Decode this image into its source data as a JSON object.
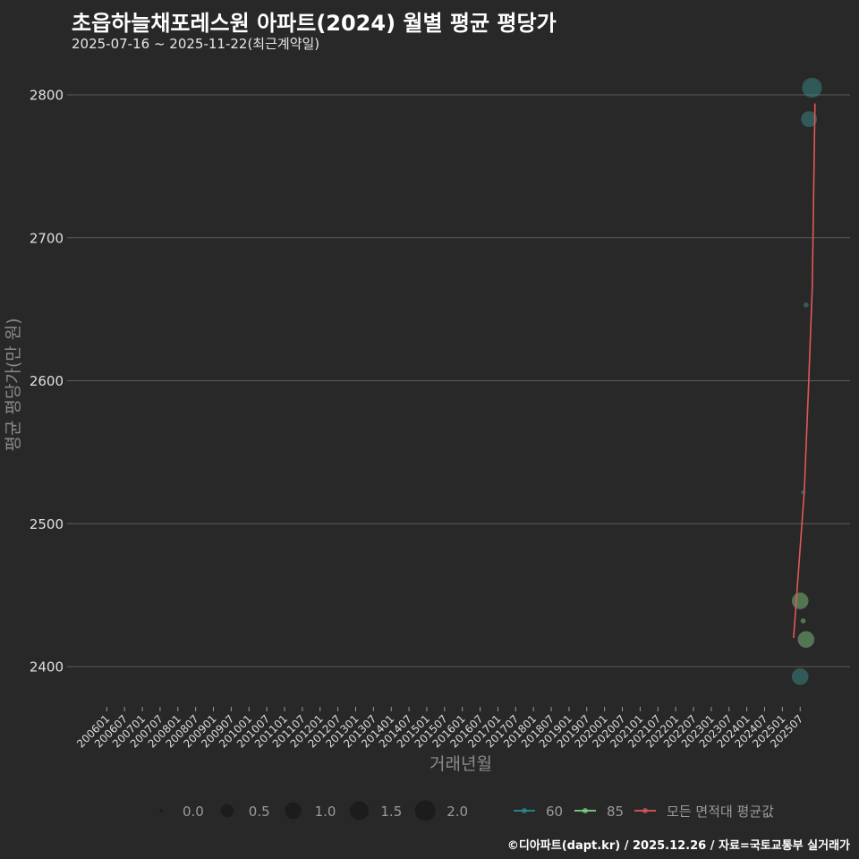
{
  "header": {
    "title": "초읍하늘채포레스원 아파트(2024) 월별 평균 평당가",
    "subtitle": "2025-07-16 ~ 2025-11-22(최근계약일)"
  },
  "footer": {
    "caption": "©디아파트(dapt.kr) / 2025.12.26 / 자료=국토교통부 실거래가"
  },
  "colors": {
    "background": "#282828",
    "grid": "#5c5c5c",
    "series_60": "#2b8c96",
    "series_60_point": "#3a8a85",
    "series_85": "#7fd97a",
    "series_85_point": "#7ec27a",
    "trend": "#e0575a",
    "size_legend": "#1c1c1c"
  },
  "chart_data": {
    "type": "scatter",
    "title": "초읍하늘채포레스원 아파트(2024) 월별 평균 평당가",
    "subtitle": "2025-07-16 ~ 2025-11-22(최근계약일)",
    "xlabel": "거래년월",
    "ylabel": "평균 평당가(만 원)",
    "ylim": [
      2372,
      2812
    ],
    "yticks": [
      2400,
      2500,
      2600,
      2700,
      2800
    ],
    "grid": true,
    "x_start": "200601",
    "xticks": [
      "200601",
      "200607",
      "200701",
      "200707",
      "200801",
      "200807",
      "200901",
      "200907",
      "201001",
      "201007",
      "201101",
      "201107",
      "201201",
      "201207",
      "201301",
      "201307",
      "201401",
      "201407",
      "201501",
      "201507",
      "201601",
      "201607",
      "201701",
      "201707",
      "201801",
      "201807",
      "201901",
      "201907",
      "202001",
      "202007",
      "202101",
      "202107",
      "202201",
      "202207",
      "202301",
      "202307",
      "202401",
      "202407",
      "202501",
      "202507"
    ],
    "series": [
      {
        "name": "60",
        "color_key": "series_60",
        "points": [
          {
            "x": "202507",
            "y": 2393,
            "size": 1.0
          },
          {
            "x": "202508",
            "y": 2522,
            "size": 0.05
          },
          {
            "x": "202509",
            "y": 2653,
            "size": 0.1
          },
          {
            "x": "202510",
            "y": 2783,
            "size": 0.9
          },
          {
            "x": "202511",
            "y": 2805,
            "size": 1.8
          }
        ]
      },
      {
        "name": "85",
        "color_key": "series_85",
        "points": [
          {
            "x": "202507",
            "y": 2446,
            "size": 1.0
          },
          {
            "x": "202508",
            "y": 2432,
            "size": 0.1
          },
          {
            "x": "202509",
            "y": 2419,
            "size": 1.0
          }
        ]
      }
    ],
    "trend": {
      "name": "모든 면적대 평균값",
      "points": [
        {
          "m": 231.8,
          "y": 2420
        },
        {
          "m": 235.4,
          "y": 2523
        },
        {
          "m": 236.9,
          "y": 2599
        },
        {
          "m": 238.1,
          "y": 2666
        },
        {
          "m": 239.0,
          "y": 2794
        }
      ]
    },
    "size_legend": {
      "title": "",
      "entries": [
        {
          "label": "0.0",
          "value": 0.0
        },
        {
          "label": "0.5",
          "value": 0.5
        },
        {
          "label": "1.0",
          "value": 1.0
        },
        {
          "label": "1.5",
          "value": 1.5
        },
        {
          "label": "2.0",
          "value": 2.0
        }
      ]
    },
    "color_legend": [
      {
        "label": "60",
        "color_key": "series_60"
      },
      {
        "label": "85",
        "color_key": "series_85"
      },
      {
        "label": "모든 면적대 평균값",
        "color_key": "trend"
      }
    ],
    "legend_position": "bottom"
  }
}
